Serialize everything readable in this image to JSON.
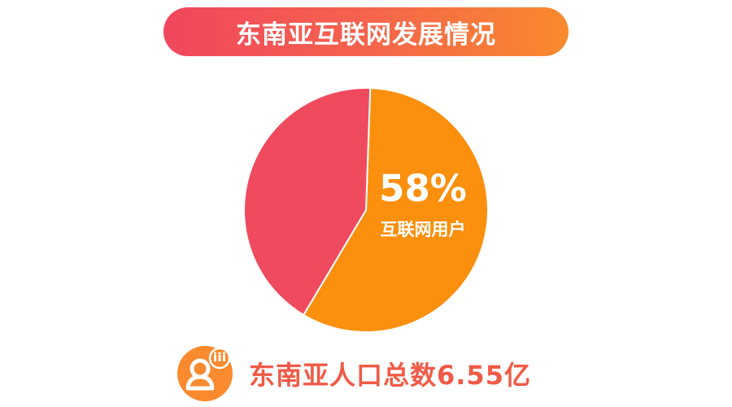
{
  "title": "东南亚互联网发展情况",
  "chart_data": {
    "type": "pie",
    "slices": [
      {
        "label": "互联网用户",
        "percent": 58,
        "color": "#fb8f0e"
      },
      {
        "label": "",
        "percent": 42,
        "color": "#f04a5e"
      }
    ],
    "value_label": "58%",
    "slice_label": "互联网用户"
  },
  "footer": {
    "text": "东南亚人口总数6.55亿",
    "icon": "user-group-icon"
  },
  "colors": {
    "title_gradient_start": "#f0465d",
    "title_gradient_end": "#f98a2e",
    "footer_text": "#f05a46",
    "icon_bg": "#f98a2e"
  }
}
